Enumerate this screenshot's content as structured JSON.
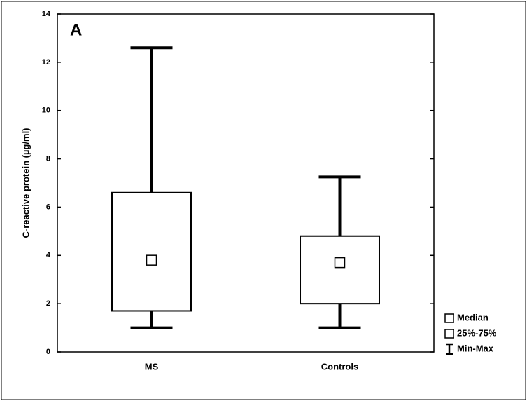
{
  "chart_data": {
    "type": "box",
    "annotation": "A",
    "ylabel": "C-reactive protein (µg/ml)",
    "categories": [
      "MS",
      "Controls"
    ],
    "min": [
      1.0,
      1.0
    ],
    "q1": [
      1.7,
      2.0
    ],
    "median": [
      3.8,
      3.7
    ],
    "q3": [
      6.6,
      4.8
    ],
    "max": [
      12.6,
      7.25
    ],
    "ylim": [
      0,
      14
    ],
    "yticks": [
      0,
      2,
      4,
      6,
      8,
      10,
      12,
      14
    ],
    "legend": [
      "Median",
      "25%-75%",
      "Min-Max"
    ],
    "legend_position": "lower right",
    "color": "#000000"
  }
}
